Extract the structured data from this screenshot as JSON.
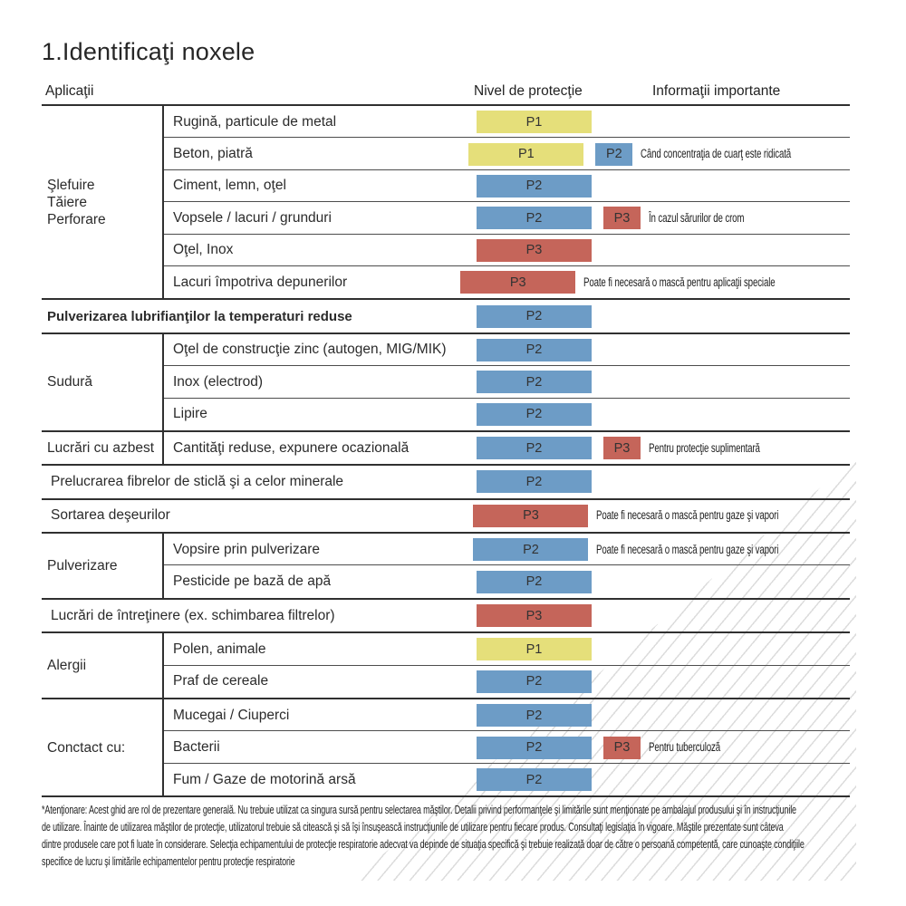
{
  "title": "1.Identificaţi noxele",
  "columns": {
    "applications": "Aplicaţii",
    "protection": "Nivel de protecţie",
    "info": "Informaţii importante"
  },
  "colors": {
    "P1": "#e5df7a",
    "P2": "#6d9cc6",
    "P3": "#c5655a",
    "badge_text": "#333333",
    "line_dark": "#303030",
    "line_light": "#4d4d4d",
    "hatch": "#dcdcdc"
  },
  "groups": [
    {
      "category": "Şlefuire\nTăiere\nPerforare",
      "rows": [
        {
          "label": "Rugină, particule de metal",
          "level": "P1"
        },
        {
          "label": "Beton, piatră",
          "level": "P1",
          "extra": "P2",
          "info": "Când concentraţia de cuarţ este ridicată"
        },
        {
          "label": "Ciment, lemn, oţel",
          "level": "P2"
        },
        {
          "label": "Vopsele / lacuri / grunduri",
          "level": "P2",
          "extra": "P3",
          "info": "În cazul sărurilor de crom"
        },
        {
          "label": "Oţel, Inox",
          "level": "P3"
        },
        {
          "label": "Lacuri împotriva depunerilor",
          "level": "P3",
          "info": "Poate fi necesară o mască pentru aplicaţii speciale"
        }
      ]
    },
    {
      "category": null,
      "bold": true,
      "rows": [
        {
          "label": "Pulverizarea lubrifianţilor la temperaturi reduse",
          "level": "P2"
        }
      ]
    },
    {
      "category": "Sudură",
      "rows": [
        {
          "label": "Oţel de construcţie zinc (autogen, MIG/MIK)",
          "level": "P2"
        },
        {
          "label": "Inox (electrod)",
          "level": "P2"
        },
        {
          "label": "Lipire",
          "level": "P2"
        }
      ]
    },
    {
      "category": "Lucrări cu azbest",
      "rows": [
        {
          "label": "Cantităţi reduse, expunere ocazională",
          "level": "P2",
          "extra": "P3",
          "info": "Pentru protecţie suplimentară"
        }
      ]
    },
    {
      "category": null,
      "rows": [
        {
          "label": "Prelucrarea fibrelor de sticlă şi a celor minerale",
          "level": "P2"
        }
      ]
    },
    {
      "category": null,
      "rows": [
        {
          "label": "Sortarea deşeurilor",
          "level": "P3",
          "info": "Poate fi necesară o mască pentru gaze şi vapori"
        }
      ]
    },
    {
      "category": "Pulverizare",
      "rows": [
        {
          "label": "Vopsire prin pulverizare",
          "level": "P2",
          "info": "Poate fi necesară o mască pentru gaze şi vapori"
        },
        {
          "label": "Pesticide pe bază de apă",
          "level": "P2"
        }
      ]
    },
    {
      "category": null,
      "rows": [
        {
          "label": "Lucrări de întreţinere (ex. schimbarea filtrelor)",
          "level": "P3"
        }
      ]
    },
    {
      "category": "Alergii",
      "rows": [
        {
          "label": "Polen, animale",
          "level": "P1"
        },
        {
          "label": "Praf de cereale",
          "level": "P2"
        }
      ]
    },
    {
      "category": "Conctact cu:",
      "rows": [
        {
          "label": "Mucegai / Ciuperci",
          "level": "P2"
        },
        {
          "label": "Bacterii",
          "level": "P2",
          "extra": "P3",
          "info": "Pentru tuberculoză"
        },
        {
          "label": "Fum / Gaze de motorină arsă",
          "level": "P2"
        }
      ]
    }
  ],
  "footnote": {
    "lines": [
      "*Atenţionare: Acest ghid are rol de prezentare generală. Nu trebuie utilizat ca singura sursă pentru selectarea măştilor. Detalii privind performanţele şi limitările sunt menţionate pe ambalajul produsului şi în instrucţiunile",
      "de utilizare. Înainte de utilizarea măştilor de protecţie, utilizatorul trebuie să citească şi să îşi însuşească instrucţiunile de utilizare pentru fiecare produs. Consultaţi legislaţia în vigoare. Măştile prezentate sunt câteva",
      "dintre produsele care pot fi luate în considerare. Selecţia echipamentului de protecţie respiratorie adecvat va depinde de situaţia specifică şi trebuie realizată doar de către o persoană competentă, care cunoaşte condiţiile",
      "specifice de lucru şi limitările echipamentelor pentru protecţie respiratorie"
    ]
  }
}
